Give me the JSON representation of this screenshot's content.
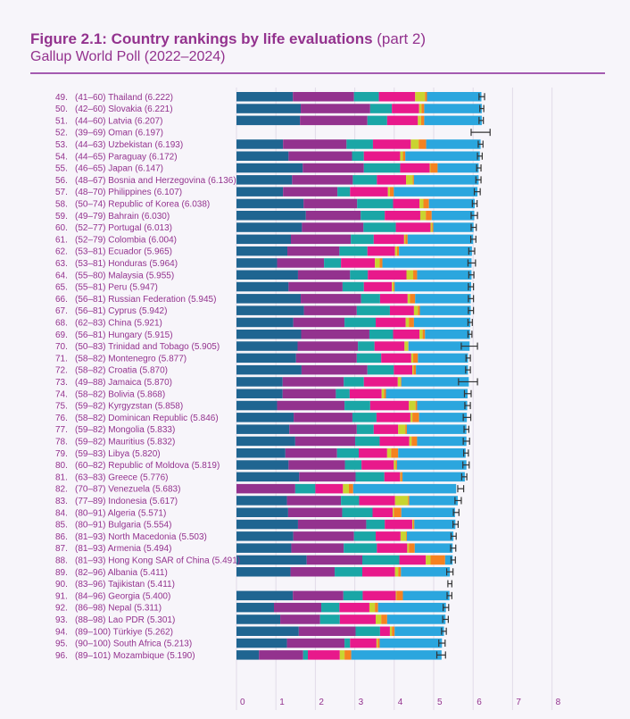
{
  "header": {
    "title_bold": "Figure 2.1: Country rankings by life evaluations",
    "title_part": " (part 2)",
    "subtitle": "Gallup World Poll (2022–2024)"
  },
  "colors": {
    "accent": "#93328e",
    "rule": "#a45ab0",
    "gridline": "#e2dbe8",
    "segments": [
      "#1f6591",
      "#93328e",
      "#1aa6a6",
      "#e8198b",
      "#c9d430",
      "#f58220",
      "#2ba6de"
    ],
    "errorbar": "#333333"
  },
  "chart_data": {
    "type": "bar",
    "orientation": "horizontal-stacked",
    "title": "Figure 2.1: Country rankings by life evaluations (part 2)",
    "subtitle": "Gallup World Poll (2022–2024)",
    "xlim": [
      0,
      8
    ],
    "xticks": [
      "0",
      "1",
      "2",
      "3",
      "4",
      "5",
      "6",
      "7",
      "8"
    ],
    "grid": true,
    "rows": [
      {
        "rank": "49.",
        "range": "(41–60)",
        "country": "Thailand",
        "score": "(6.222)",
        "value": 6.222,
        "ci": [
          6.15,
          6.29
        ],
        "segments": [
          1.43,
          1.55,
          0.63,
          0.92,
          0.25,
          0.05,
          1.38
        ]
      },
      {
        "rank": "50.",
        "range": "(42–60)",
        "country": "Slovakia",
        "score": "(6.221)",
        "value": 6.221,
        "ci": [
          6.17,
          6.27
        ],
        "segments": [
          1.63,
          1.76,
          0.55,
          0.69,
          0.06,
          0.07,
          1.46
        ]
      },
      {
        "rank": "51.",
        "range": "(44–60)",
        "country": "Latvia",
        "score": "(6.207)",
        "value": 6.207,
        "ci": [
          6.15,
          6.26
        ],
        "segments": [
          1.61,
          1.71,
          0.5,
          0.78,
          0.08,
          0.08,
          1.46
        ]
      },
      {
        "rank": "52.",
        "range": "(39–69)",
        "country": "Oman",
        "score": "(6.197)",
        "value": 6.197,
        "ci": [
          5.95,
          6.43
        ],
        "segments": []
      },
      {
        "rank": "53.",
        "range": "(44–63)",
        "country": "Uzbekistan",
        "score": "(6.193)",
        "value": 6.193,
        "ci": [
          6.13,
          6.25
        ],
        "segments": [
          1.18,
          1.61,
          0.67,
          0.96,
          0.2,
          0.19,
          1.38
        ]
      },
      {
        "rank": "54.",
        "range": "(44–65)",
        "country": "Paraguay",
        "score": "(6.172)",
        "value": 6.172,
        "ci": [
          6.11,
          6.23
        ],
        "segments": [
          1.32,
          1.61,
          0.3,
          0.92,
          0.07,
          0.06,
          1.89
        ]
      },
      {
        "rank": "55.",
        "range": "(46–65)",
        "country": "Japan",
        "score": "(6.147)",
        "value": 6.147,
        "ci": [
          6.09,
          6.2
        ],
        "segments": [
          1.68,
          1.55,
          0.92,
          0.75,
          0.02,
          0.18,
          1.04
        ]
      },
      {
        "rank": "56.",
        "range": "(48–67)",
        "country": "Bosnia and Herzegovina",
        "score": "(6.136)",
        "value": 6.136,
        "ci": [
          6.07,
          6.2
        ],
        "segments": [
          1.41,
          1.54,
          0.61,
          0.74,
          0.17,
          0.03,
          1.64
        ]
      },
      {
        "rank": "57.",
        "range": "(48–70)",
        "country": "Philippines",
        "score": "(6.107)",
        "value": 6.107,
        "ci": [
          6.03,
          6.18
        ],
        "segments": [
          1.18,
          1.38,
          0.32,
          0.96,
          0.05,
          0.1,
          2.12
        ]
      },
      {
        "rank": "58.",
        "range": "(50–74)",
        "country": "Republic of Korea",
        "score": "(6.038)",
        "value": 6.038,
        "ci": [
          5.98,
          6.1
        ],
        "segments": [
          1.7,
          1.36,
          0.91,
          0.67,
          0.1,
          0.14,
          1.16
        ]
      },
      {
        "rank": "59.",
        "range": "(49–79)",
        "country": "Bahrain",
        "score": "(6.030)",
        "value": 6.03,
        "ci": [
          5.95,
          6.11
        ],
        "segments": [
          1.76,
          1.39,
          0.61,
          0.9,
          0.14,
          0.15,
          1.08
        ]
      },
      {
        "rank": "60.",
        "range": "(52–77)",
        "country": "Portugal",
        "score": "(6.013)",
        "value": 6.013,
        "ci": [
          5.95,
          6.08
        ],
        "segments": [
          1.66,
          1.56,
          0.82,
          0.88,
          0.04,
          0.03,
          1.02
        ]
      },
      {
        "rank": "61.",
        "range": "(52–79)",
        "country": "Colombia",
        "score": "(6.004)",
        "value": 6.004,
        "ci": [
          5.94,
          6.07
        ],
        "segments": [
          1.38,
          1.52,
          0.58,
          0.77,
          0.03,
          0.06,
          1.66
        ]
      },
      {
        "rank": "62.",
        "range": "(53–81)",
        "country": "Ecuador",
        "score": "(5.965)",
        "value": 5.965,
        "ci": [
          5.89,
          6.04
        ],
        "segments": [
          1.29,
          1.32,
          0.71,
          0.7,
          0.05,
          0.05,
          1.85
        ]
      },
      {
        "rank": "63.",
        "range": "(53–81)",
        "country": "Honduras",
        "score": "(5.964)",
        "value": 5.964,
        "ci": [
          5.87,
          6.06
        ],
        "segments": [
          1.03,
          1.19,
          0.43,
          0.86,
          0.12,
          0.07,
          2.26
        ]
      },
      {
        "rank": "64.",
        "range": "(55–80)",
        "country": "Malaysia",
        "score": "(5.955)",
        "value": 5.955,
        "ci": [
          5.89,
          6.02
        ],
        "segments": [
          1.56,
          1.32,
          0.45,
          0.98,
          0.17,
          0.1,
          1.38
        ]
      },
      {
        "rank": "65.",
        "range": "(55–81)",
        "country": "Peru",
        "score": "(5.947)",
        "value": 5.947,
        "ci": [
          5.88,
          6.01
        ],
        "segments": [
          1.32,
          1.37,
          0.54,
          0.71,
          0.04,
          0.03,
          1.94
        ]
      },
      {
        "rank": "66.",
        "range": "(56–81)",
        "country": "Russian Federation",
        "score": "(5.945)",
        "value": 5.945,
        "ci": [
          5.88,
          6.01
        ],
        "segments": [
          1.63,
          1.53,
          0.48,
          0.7,
          0.06,
          0.13,
          1.41
        ]
      },
      {
        "rank": "67.",
        "range": "(56–81)",
        "country": "Cyprus",
        "score": "(5.942)",
        "value": 5.942,
        "ci": [
          5.88,
          6.01
        ],
        "segments": [
          1.71,
          1.34,
          0.84,
          0.61,
          0.1,
          0.05,
          1.29
        ]
      },
      {
        "rank": "68.",
        "range": "(62–83)",
        "country": "China",
        "score": "(5.921)",
        "value": 5.921,
        "ci": [
          5.87,
          5.98
        ],
        "segments": [
          1.44,
          1.3,
          0.79,
          0.76,
          0.08,
          0.13,
          1.43
        ]
      },
      {
        "rank": "69.",
        "range": "(56–81)",
        "country": "Hungary",
        "score": "(5.915)",
        "value": 5.915,
        "ci": [
          5.87,
          5.97
        ],
        "segments": [
          1.64,
          1.73,
          0.6,
          0.67,
          0.08,
          0.06,
          1.14
        ]
      },
      {
        "rank": "70.",
        "range": "(50–83)",
        "country": "Trinidad and Tobago",
        "score": "(5.905)",
        "value": 5.905,
        "ci": [
          5.7,
          6.11
        ],
        "segments": [
          1.55,
          1.53,
          0.42,
          0.76,
          0.09,
          0.01,
          1.55
        ]
      },
      {
        "rank": "71.",
        "range": "(58–82)",
        "country": "Montenegro",
        "score": "(5.877)",
        "value": 5.877,
        "ci": [
          5.82,
          5.93
        ],
        "segments": [
          1.51,
          1.54,
          0.62,
          0.76,
          0.05,
          0.12,
          1.27
        ]
      },
      {
        "rank": "72.",
        "range": "(58–82)",
        "country": "Croatia",
        "score": "(5.870)",
        "value": 5.87,
        "ci": [
          5.81,
          5.93
        ],
        "segments": [
          1.65,
          1.67,
          0.67,
          0.47,
          0.03,
          0.06,
          1.32
        ]
      },
      {
        "rank": "73.",
        "range": "(49–88)",
        "country": "Jamaica",
        "score": "(5.870)",
        "value": 5.87,
        "ci": [
          5.63,
          6.11
        ],
        "segments": [
          1.17,
          1.55,
          0.51,
          0.86,
          0.07,
          0.02,
          1.71
        ]
      },
      {
        "rank": "74.",
        "range": "(58–82)",
        "country": "Bolivia",
        "score": "(5.868)",
        "value": 5.868,
        "ci": [
          5.78,
          5.95
        ],
        "segments": [
          1.17,
          1.35,
          0.35,
          0.81,
          0.06,
          0.05,
          2.07
        ]
      },
      {
        "rank": "75.",
        "range": "(59–82)",
        "country": "Kyrgyzstan",
        "score": "(5.858)",
        "value": 5.858,
        "ci": [
          5.79,
          5.93
        ],
        "segments": [
          1.03,
          1.71,
          0.65,
          0.98,
          0.17,
          0.04,
          1.27
        ]
      },
      {
        "rank": "76.",
        "range": "(58–82)",
        "country": "Dominican Republic",
        "score": "(5.846)",
        "value": 5.846,
        "ci": [
          5.75,
          5.94
        ],
        "segments": [
          1.45,
          1.49,
          0.61,
          0.86,
          0.05,
          0.17,
          1.21
        ]
      },
      {
        "rank": "77.",
        "range": "(59–82)",
        "country": "Mongolia",
        "score": "(5.833)",
        "value": 5.833,
        "ci": [
          5.77,
          5.89
        ],
        "segments": [
          1.34,
          1.71,
          0.43,
          0.62,
          0.18,
          0.04,
          1.51
        ]
      },
      {
        "rank": "78.",
        "range": "(59–82)",
        "country": "Mauritius",
        "score": "(5.832)",
        "value": 5.832,
        "ci": [
          5.75,
          5.91
        ],
        "segments": [
          1.49,
          1.52,
          0.62,
          0.75,
          0.06,
          0.14,
          1.25
        ]
      },
      {
        "rank": "79.",
        "range": "(59–83)",
        "country": "Libya",
        "score": "(5.820)",
        "value": 5.82,
        "ci": [
          5.76,
          5.88
        ],
        "segments": [
          1.24,
          1.31,
          0.55,
          0.72,
          0.1,
          0.18,
          1.71
        ]
      },
      {
        "rank": "80.",
        "range": "(60–82)",
        "country": "Republic of Moldova",
        "score": "(5.819)",
        "value": 5.819,
        "ci": [
          5.74,
          5.9
        ],
        "segments": [
          1.32,
          1.43,
          0.42,
          0.82,
          0.05,
          0.03,
          1.76
        ]
      },
      {
        "rank": "81.",
        "range": "(63–83)",
        "country": "Greece",
        "score": "(5.776)",
        "value": 5.776,
        "ci": [
          5.71,
          5.84
        ],
        "segments": [
          1.59,
          1.43,
          0.73,
          0.4,
          0.02,
          0.04,
          1.58
        ]
      },
      {
        "rank": "82.",
        "range": "(70–87)",
        "country": "Venezuela",
        "score": "(5.683)",
        "value": 5.683,
        "ci": [
          5.61,
          5.76
        ],
        "segments": [
          0.0,
          1.49,
          0.51,
          0.7,
          0.15,
          0.11,
          2.61
        ]
      },
      {
        "rank": "83.",
        "range": "(77–89)",
        "country": "Indonesia",
        "score": "(5.617)",
        "value": 5.617,
        "ci": [
          5.54,
          5.7
        ],
        "segments": [
          1.28,
          1.37,
          0.46,
          0.91,
          0.33,
          0.03,
          1.23
        ]
      },
      {
        "rank": "84.",
        "range": "(80–91)",
        "country": "Algeria",
        "score": "(5.571)",
        "value": 5.571,
        "ci": [
          5.5,
          5.64
        ],
        "segments": [
          1.31,
          1.37,
          0.77,
          0.51,
          0.03,
          0.19,
          1.36
        ]
      },
      {
        "rank": "85.",
        "range": "(80–91)",
        "country": "Bulgaria",
        "score": "(5.554)",
        "value": 5.554,
        "ci": [
          5.49,
          5.62
        ],
        "segments": [
          1.56,
          1.73,
          0.47,
          0.7,
          0.02,
          0.03,
          1.04
        ]
      },
      {
        "rank": "86.",
        "range": "(81–93)",
        "country": "North Macedonia",
        "score": "(5.503)",
        "value": 5.503,
        "ci": [
          5.44,
          5.57
        ],
        "segments": [
          1.44,
          1.54,
          0.55,
          0.63,
          0.14,
          0.02,
          1.18
        ]
      },
      {
        "rank": "87.",
        "range": "(81–93)",
        "country": "Armenia",
        "score": "(5.494)",
        "value": 5.494,
        "ci": [
          5.43,
          5.56
        ],
        "segments": [
          1.39,
          1.33,
          0.84,
          0.77,
          0.04,
          0.15,
          0.96
        ]
      },
      {
        "rank": "88.",
        "range": "(81–93)",
        "country": "Hong Kong SAR of China",
        "score": "(5.491)",
        "value": 5.491,
        "ci": [
          5.44,
          5.55
        ],
        "segments": [
          1.78,
          1.41,
          0.94,
          0.67,
          0.12,
          0.37,
          0.19
        ]
      },
      {
        "rank": "89.",
        "range": "(82–96)",
        "country": "Albania",
        "score": "(5.411)",
        "value": 5.411,
        "ci": [
          5.33,
          5.49
        ],
        "segments": [
          1.37,
          1.12,
          0.7,
          0.83,
          0.08,
          0.07,
          1.24
        ]
      },
      {
        "rank": "90.",
        "range": "(83–96)",
        "country": "Tajikistan",
        "score": "(5.411)",
        "value": 5.411,
        "ci": [
          5.36,
          5.46
        ],
        "segments": []
      },
      {
        "rank": "91.",
        "range": "(84–96)",
        "country": "Georgia",
        "score": "(5.400)",
        "value": 5.4,
        "ci": [
          5.34,
          5.46
        ],
        "segments": [
          1.43,
          1.28,
          0.49,
          0.84,
          0.02,
          0.16,
          1.18
        ]
      },
      {
        "rank": "92.",
        "range": "(86–98)",
        "country": "Nepal",
        "score": "(5.311)",
        "value": 5.311,
        "ci": [
          5.24,
          5.38
        ],
        "segments": [
          0.95,
          1.2,
          0.46,
          0.76,
          0.14,
          0.08,
          1.72
        ]
      },
      {
        "rank": "93.",
        "range": "(88–98)",
        "country": "Lao PDR",
        "score": "(5.301)",
        "value": 5.301,
        "ci": [
          5.23,
          5.37
        ],
        "segments": [
          1.11,
          1.01,
          0.5,
          0.91,
          0.14,
          0.15,
          1.48
        ]
      },
      {
        "rank": "94.",
        "range": "(89–100)",
        "country": "Türkiye",
        "score": "(5.262)",
        "value": 5.262,
        "ci": [
          5.2,
          5.32
        ],
        "segments": [
          1.58,
          1.44,
          0.62,
          0.25,
          0.05,
          0.07,
          1.25
        ]
      },
      {
        "rank": "95.",
        "range": "(90–100)",
        "country": "South Africa",
        "score": "(5.213)",
        "value": 5.213,
        "ci": [
          5.13,
          5.29
        ],
        "segments": [
          1.28,
          1.46,
          0.14,
          0.67,
          0.03,
          0.05,
          1.58
        ]
      },
      {
        "rank": "96.",
        "range": "(89–101)",
        "country": "Mozambique",
        "score": "(5.190)",
        "value": 5.19,
        "ci": [
          5.08,
          5.3
        ],
        "segments": [
          0.57,
          1.12,
          0.12,
          0.81,
          0.12,
          0.17,
          2.29
        ]
      }
    ]
  }
}
